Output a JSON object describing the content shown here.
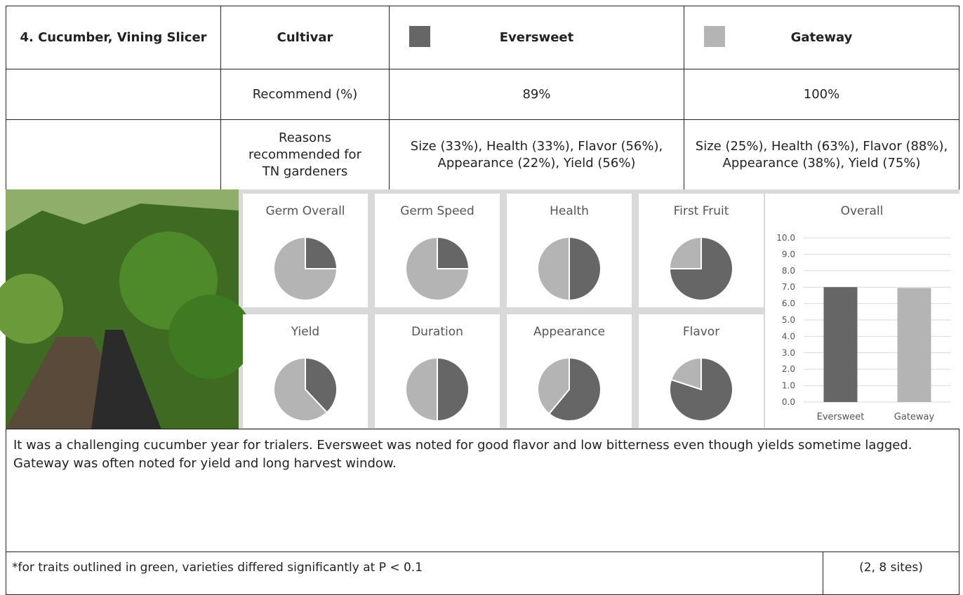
{
  "table": {
    "title": "4. Cucumber, Vining Slicer",
    "header": "Cultivar",
    "cultivars": [
      {
        "name": "Eversweet",
        "color": "#666666"
      },
      {
        "name": "Gateway",
        "color": "#b4b4b4"
      }
    ],
    "rows": [
      {
        "label": "Recommend (%)",
        "values": [
          "89%",
          "100%"
        ]
      },
      {
        "label": "Reasons recommended for TN gardeners",
        "values": [
          "Size (33%), Health (33%), Flavor (56%), Appearance (22%), Yield (56%)",
          "Size (25%), Health (63%), Flavor (88%), Appearance (38%), Yield (75%)"
        ]
      }
    ]
  },
  "chart_data": [
    {
      "type": "pie",
      "title": "Germ Overall",
      "values": [
        25,
        75
      ],
      "colors": [
        "#666666",
        "#b4b4b4"
      ]
    },
    {
      "type": "pie",
      "title": "Germ Speed",
      "values": [
        25,
        75
      ],
      "colors": [
        "#666666",
        "#b4b4b4"
      ]
    },
    {
      "type": "pie",
      "title": "Health",
      "values": [
        50,
        50
      ],
      "colors": [
        "#666666",
        "#b4b4b4"
      ]
    },
    {
      "type": "pie",
      "title": "First Fruit",
      "values": [
        75,
        25
      ],
      "colors": [
        "#666666",
        "#b4b4b4"
      ]
    },
    {
      "type": "pie",
      "title": "Yield",
      "values": [
        38,
        62
      ],
      "colors": [
        "#666666",
        "#b4b4b4"
      ]
    },
    {
      "type": "pie",
      "title": "Duration",
      "values": [
        50,
        50
      ],
      "colors": [
        "#666666",
        "#b4b4b4"
      ]
    },
    {
      "type": "pie",
      "title": "Appearance",
      "values": [
        61,
        39
      ],
      "colors": [
        "#666666",
        "#b4b4b4"
      ]
    },
    {
      "type": "pie",
      "title": "Flavor",
      "values": [
        80,
        20
      ],
      "colors": [
        "#666666",
        "#b4b4b4"
      ]
    },
    {
      "type": "bar",
      "title": "Overall",
      "categories": [
        "Eversweet",
        "Gateway"
      ],
      "values": [
        7.0,
        6.95
      ],
      "colors": [
        "#666666",
        "#b4b4b4"
      ],
      "ylim": [
        0,
        10
      ],
      "yticks": [
        {
          "value": 0,
          "label": "0.0"
        },
        {
          "value": 1,
          "label": "1.0"
        },
        {
          "value": 2,
          "label": "2.0"
        },
        {
          "value": 3,
          "label": "3.0"
        },
        {
          "value": 4,
          "label": "4.0"
        },
        {
          "value": 5,
          "label": "5.0"
        },
        {
          "value": 6,
          "label": "6.0"
        },
        {
          "value": 7,
          "label": "7.0"
        },
        {
          "value": 8,
          "label": "8.0"
        },
        {
          "value": 9,
          "label": "9.0"
        },
        {
          "value": 10,
          "label": "10.0"
        }
      ],
      "grid": true
    }
  ],
  "notes": {
    "comment": "It was a challenging cucumber year for trialers. Eversweet was noted for good flavor and low bitterness even though yields sometime lagged. Gateway was often noted for yield and long harvest window.",
    "footnote": "*for traits outlined in green, varieties differed significantly at P < 0.1",
    "sites": "(2, 8 sites)"
  }
}
